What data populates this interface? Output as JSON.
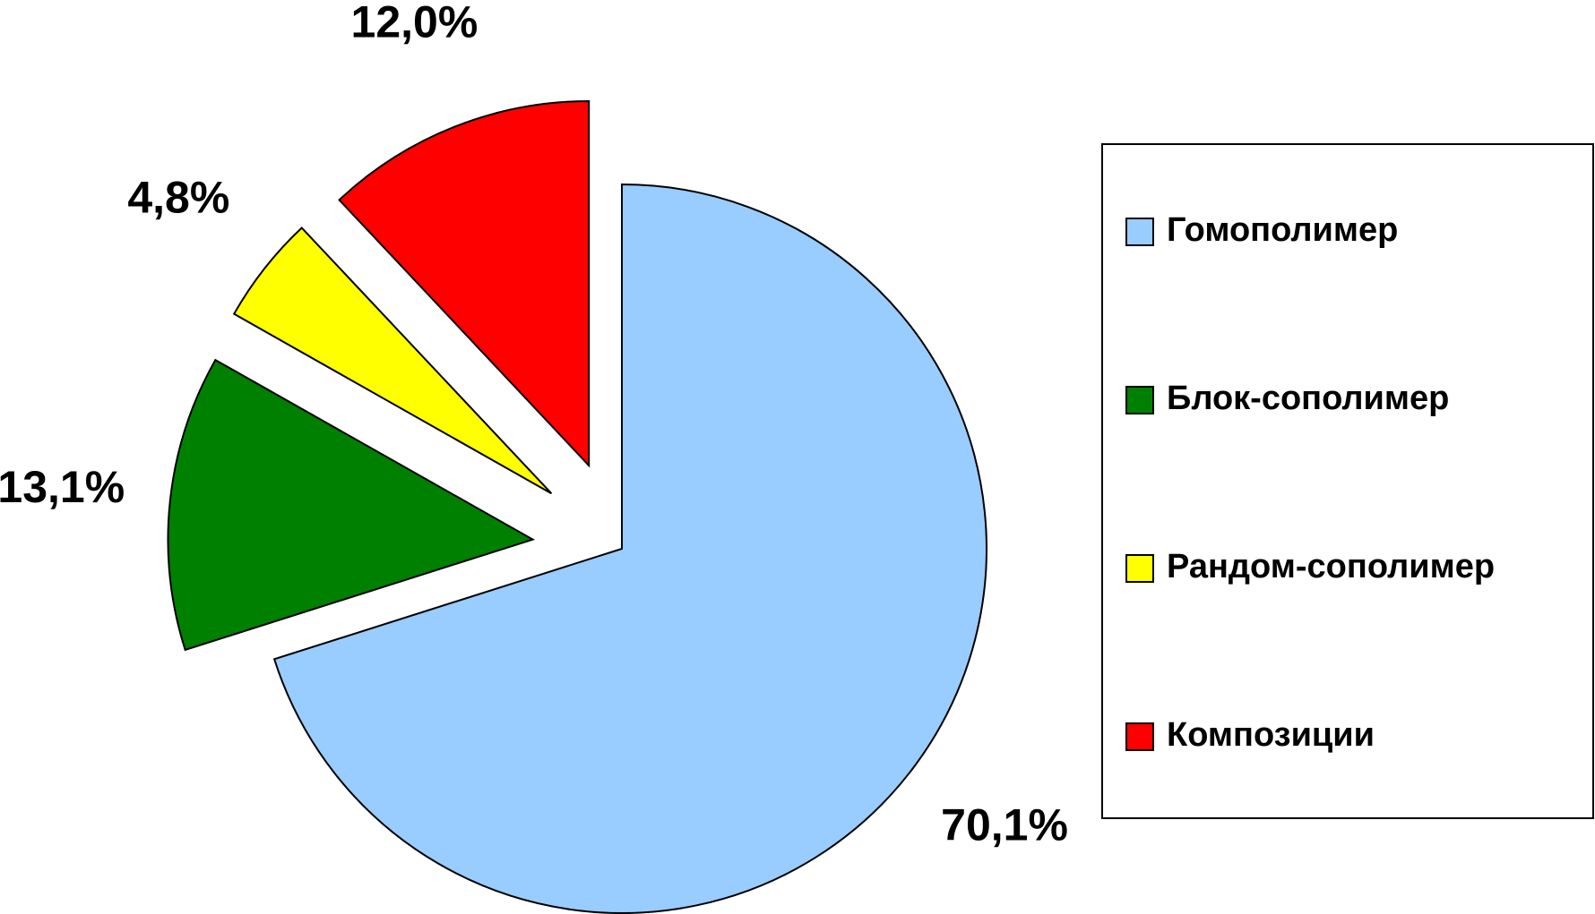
{
  "chart_data": {
    "type": "pie",
    "categories": [
      "Гомополимер",
      "Блок-сополимер",
      "Рандом-сополимер",
      "Композиции"
    ],
    "values": [
      70.1,
      13.1,
      4.8,
      12.0
    ],
    "value_labels": [
      "70,1%",
      "13,1%",
      "4,8%",
      "12,0%"
    ],
    "colors": [
      "#99ccff",
      "#008000",
      "#ffff00",
      "#ff0000"
    ],
    "legend": "right"
  }
}
